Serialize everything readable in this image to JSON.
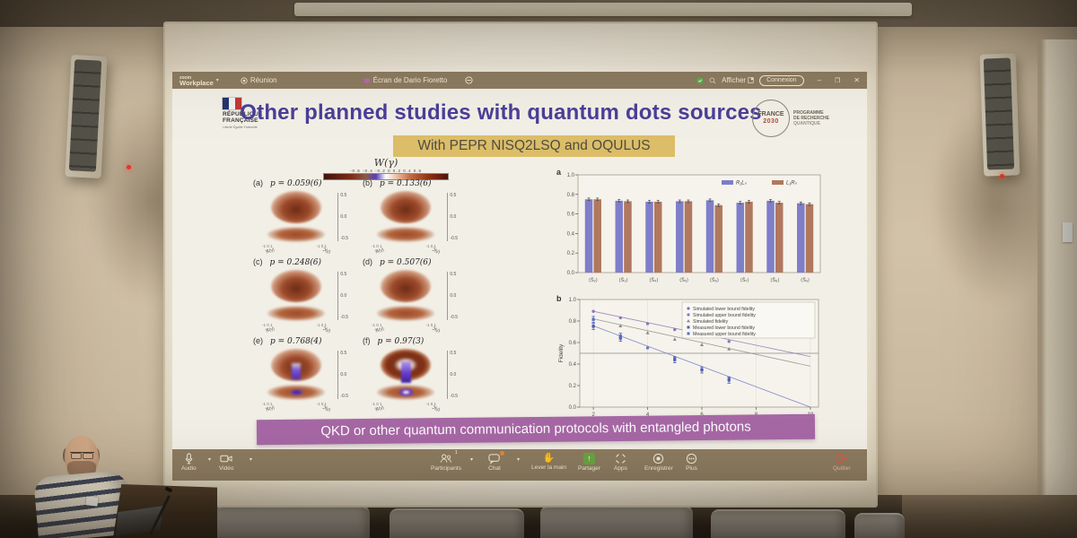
{
  "window": {
    "titlebar": {
      "app_prefix": "zoom",
      "app_name": "Workplace",
      "meeting_label": "Réunion",
      "share_label": "Écran de Dario Fioretto",
      "afficher_label": "Afficher",
      "connect_label": "Connexion",
      "minimize_glyph": "–",
      "restore_glyph": "❐",
      "close_glyph": "✕"
    },
    "toolbar": {
      "audio": "Audio",
      "video": "Vidéo",
      "participants": "Participants",
      "participants_count": "1",
      "chat": "Chat",
      "raise_hand": "Lever la main",
      "share": "Partager",
      "apps": "Apps",
      "record": "Enregistrer",
      "more": "Plus",
      "leave": "Quitter"
    }
  },
  "slide": {
    "title": "Other planned studies with quantum dots sources",
    "subtitle": "With PEPR NISQ2LSQ and OQULUS",
    "banner": "QKD or other quantum communication protocols with entangled photons",
    "logo_left": {
      "line1": "RÉPUBLIQUE",
      "line2": "FRANÇAISE",
      "motto": "Liberté·Égalité·Fraternité"
    },
    "logo_right": {
      "line1": "FRANCE",
      "line2": "2030",
      "caption1": "PROGRAMME",
      "caption2": "DE RECHERCHE",
      "caption3": "QUANTIQUE"
    },
    "wigner": {
      "colorbar_title": "W(γ)",
      "colorbar_ticks": "-0.6 -0.4 -0.2  0  0.2 0.4 0.6",
      "z_ticks": [
        "0.5",
        "0.0",
        "-0.5"
      ],
      "x_axis": "ℜ(γ)",
      "y_axis": "ℑ(γ)",
      "xy_ticks": "-1  0  1",
      "panels": [
        {
          "label": "(a)",
          "p": "p = 0.059(6)",
          "type": "peak"
        },
        {
          "label": "(b)",
          "p": "p = 0.133(6)",
          "type": "peak"
        },
        {
          "label": "(c)",
          "p": "p = 0.248(6)",
          "type": "peak"
        },
        {
          "label": "(d)",
          "p": "p = 0.507(6)",
          "type": "peak"
        },
        {
          "label": "(e)",
          "p": "p = 0.768(4)",
          "type": "crater"
        },
        {
          "label": "(f)",
          "p": "p = 0.97(3)",
          "type": "donut"
        }
      ]
    }
  },
  "chart_data": [
    {
      "panel": "a",
      "type": "bar",
      "categories": [
        "⟨Ŝ₂⟩",
        "⟨Ŝ₃⟩",
        "⟨Ŝ₄⟩",
        "⟨Ŝ₅⟩",
        "⟨Ŝ₆⟩",
        "⟨Ŝ₇⟩",
        "⟨Ŝ₈⟩",
        "⟨Ŝ₉⟩"
      ],
      "series": [
        {
          "name": "R₁Lₙ",
          "color": "#7e7ec9",
          "values": [
            0.75,
            0.735,
            0.725,
            0.73,
            0.74,
            0.715,
            0.735,
            0.71
          ]
        },
        {
          "name": "L₁Rₙ",
          "color": "#b0785f",
          "values": [
            0.75,
            0.73,
            0.725,
            0.73,
            0.69,
            0.725,
            0.715,
            0.7
          ]
        }
      ],
      "error": 0.013,
      "ylim": [
        0,
        1
      ],
      "yticks": [
        "0.0",
        "0.2",
        "0.4",
        "0.6",
        "0.8",
        "1.0"
      ],
      "legend_position": "top-right"
    },
    {
      "panel": "b",
      "type": "line",
      "xlabel": "Number of photons (N-2 qubits)",
      "ylabel": "Fidelity",
      "xlim": [
        1.5,
        10.3
      ],
      "ylim": [
        0,
        1
      ],
      "xticks": [
        2,
        4,
        6,
        8,
        10
      ],
      "yticks": [
        "0.0",
        "0.2",
        "0.4",
        "0.6",
        "0.8",
        "1.0"
      ],
      "threshold": 0.5,
      "series": [
        {
          "name": "Simulated lower bound fidelity",
          "marker": "circle",
          "color": "#6b79c5",
          "line": [
            [
              2,
              0.755
            ],
            [
              10,
              0.0
            ]
          ],
          "points": [
            [
              2,
              0.755
            ],
            [
              3,
              0.65
            ],
            [
              4,
              0.55
            ],
            [
              5,
              0.455
            ],
            [
              6,
              0.35
            ],
            [
              7,
              0.265
            ]
          ]
        },
        {
          "name": "Simulated upper bound fidelity",
          "marker": "circle",
          "color": "#8d78b8",
          "line": [
            [
              2,
              0.89
            ],
            [
              10,
              0.47
            ]
          ],
          "points": [
            [
              2,
              0.89
            ],
            [
              3,
              0.83
            ],
            [
              4,
              0.775
            ],
            [
              5,
              0.72
            ],
            [
              6,
              0.665
            ],
            [
              7,
              0.61
            ]
          ]
        },
        {
          "name": "Simulated fidelity",
          "marker": "triangle",
          "color": "#8b8b8b",
          "line": [
            [
              2,
              0.82
            ],
            [
              10,
              0.38
            ]
          ],
          "points": [
            [
              2,
              0.82
            ],
            [
              3,
              0.755
            ],
            [
              4,
              0.69
            ],
            [
              5,
              0.63
            ],
            [
              6,
              0.58
            ],
            [
              7,
              0.54
            ]
          ]
        },
        {
          "name": "Measured lower bound fidelity",
          "marker": "square",
          "color": "#4d5fb3",
          "points": [
            [
              2,
              0.75
            ],
            [
              3,
              0.64
            ],
            [
              5,
              0.44
            ],
            [
              6,
              0.345
            ],
            [
              7,
              0.25
            ]
          ],
          "error": 0.028
        },
        {
          "name": "Measured upper bound fidelity",
          "marker": "square",
          "color": "#5b6ec0",
          "points": [
            [
              2,
              0.815
            ],
            [
              3,
              0.66
            ]
          ],
          "error": 0.028
        }
      ]
    }
  ]
}
